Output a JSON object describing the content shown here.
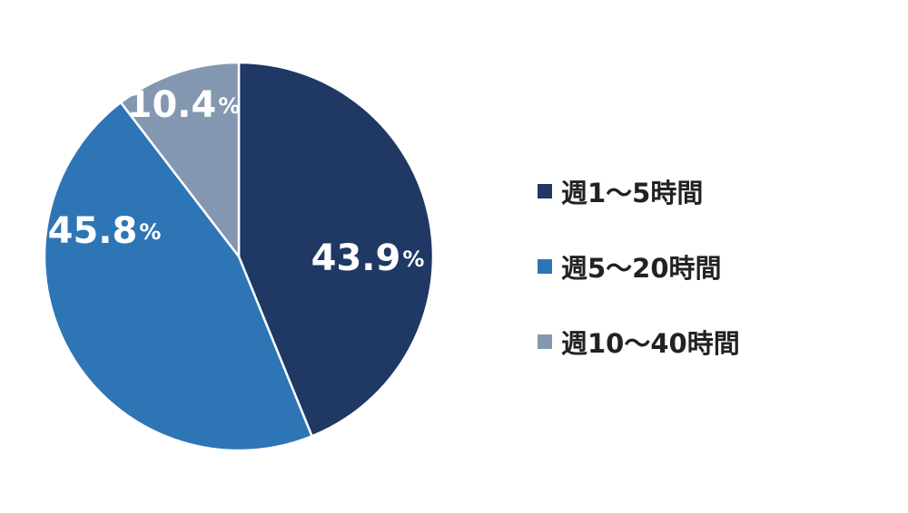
{
  "chart_data": {
    "type": "pie",
    "title": "",
    "categories": [
      "週1〜5時間",
      "週5〜20時間",
      "週10〜40時間"
    ],
    "values": [
      43.9,
      45.8,
      10.4
    ],
    "value_labels": [
      "43.9",
      "45.8",
      "10.4"
    ],
    "unit": "%",
    "colors": [
      "#1f3864",
      "#2e75b6",
      "#8497b0"
    ],
    "start_angle_deg": 0,
    "direction": "clockwise",
    "legend_position": "right"
  }
}
